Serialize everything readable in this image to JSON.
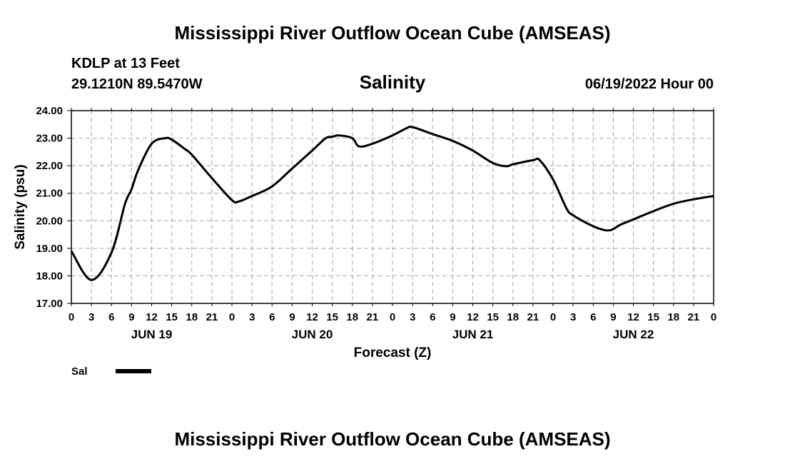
{
  "header": {
    "title": "Mississippi River Outflow Ocean Cube (AMSEAS)",
    "station": "KDLP at 13 Feet",
    "location": "29.1210N  89.5470W",
    "run": "06/19/2022 Hour 00"
  },
  "footer": {
    "title": "Mississippi River Outflow Ocean Cube (AMSEAS)"
  },
  "chart_data": {
    "type": "line",
    "title": "Salinity",
    "xlabel": "Forecast (Z)",
    "ylabel": "Salinity (psu)",
    "ylim": [
      17.0,
      24.0
    ],
    "xlim": [
      0,
      96
    ],
    "grid": true,
    "y_ticks": [
      "17.00",
      "18.00",
      "19.00",
      "20.00",
      "21.00",
      "22.00",
      "23.00",
      "24.00"
    ],
    "x_tick_labels": [
      "0",
      "3",
      "6",
      "9",
      "12",
      "15",
      "18",
      "21",
      "0",
      "3",
      "6",
      "9",
      "12",
      "15",
      "18",
      "21",
      "0",
      "3",
      "6",
      "9",
      "12",
      "15",
      "18",
      "21",
      "0",
      "3",
      "6",
      "9",
      "12",
      "15",
      "18",
      "21",
      "0"
    ],
    "date_labels": [
      {
        "label": "JUN 19",
        "hour": 12
      },
      {
        "label": "JUN 20",
        "hour": 36
      },
      {
        "label": "JUN 21",
        "hour": 60
      },
      {
        "label": "JUN 22",
        "hour": 84
      }
    ],
    "legend": [
      {
        "name": "Sal",
        "color": "#000000",
        "position": "bottom-left"
      }
    ],
    "series": [
      {
        "name": "Sal",
        "color": "#000000",
        "x": [
          0,
          3,
          6,
          8,
          9,
          10,
          12,
          14,
          15,
          17,
          18,
          21,
          24,
          25,
          27,
          30,
          33,
          36,
          38,
          39,
          40,
          42,
          43,
          45,
          48,
          50,
          51,
          54,
          57,
          60,
          63,
          65,
          66,
          69,
          70,
          72,
          74,
          75,
          78,
          80,
          81,
          82,
          84,
          87,
          90,
          93,
          96
        ],
        "y": [
          18.9,
          17.85,
          18.85,
          20.6,
          21.15,
          21.85,
          22.8,
          23.0,
          22.95,
          22.6,
          22.4,
          21.55,
          20.75,
          20.7,
          20.9,
          21.25,
          21.9,
          22.55,
          23.0,
          23.05,
          23.1,
          23.0,
          22.7,
          22.8,
          23.1,
          23.35,
          23.4,
          23.15,
          22.9,
          22.55,
          22.1,
          21.98,
          22.05,
          22.2,
          22.2,
          21.5,
          20.45,
          20.2,
          19.8,
          19.65,
          19.7,
          19.85,
          20.05,
          20.35,
          20.62,
          20.78,
          20.9
        ]
      }
    ]
  }
}
